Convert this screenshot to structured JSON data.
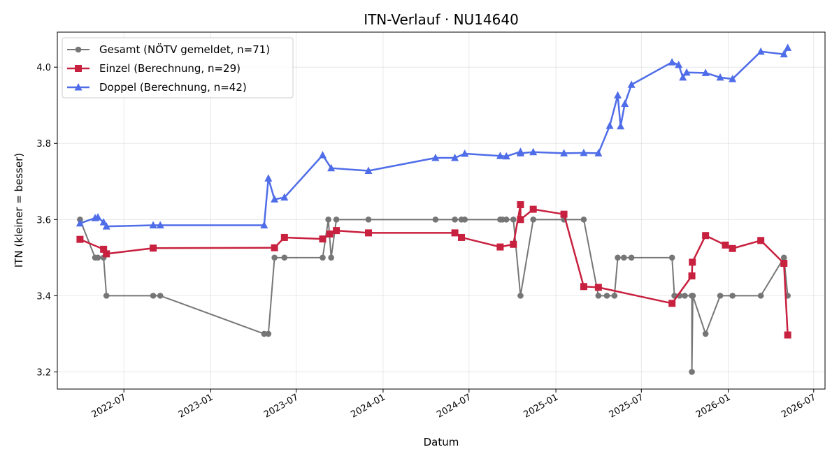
{
  "chart_data": {
    "type": "line",
    "title": "ITN-Verlauf · NU14640",
    "xlabel": "Datum",
    "ylabel": "ITN  (kleiner = besser)",
    "xlim": [
      "2022-02-10",
      "2026-07-25"
    ],
    "ylim": [
      3.155,
      4.092
    ],
    "x_ticks": [
      "2022-07",
      "2023-01",
      "2023-07",
      "2024-01",
      "2024-07",
      "2025-01",
      "2025-07",
      "2026-01",
      "2026-07"
    ],
    "y_ticks": [
      3.2,
      3.4,
      3.6,
      3.8,
      4.0
    ],
    "grid": true,
    "legend_position": "top-left",
    "series": [
      {
        "name": "Gesamt (NÖTV gemeldet, n=71)",
        "color": "#555555",
        "marker": "circle",
        "points": [
          [
            "2022-03-30",
            3.6
          ],
          [
            "2022-05-01",
            3.5
          ],
          [
            "2022-05-07",
            3.5
          ],
          [
            "2022-05-19",
            3.5
          ],
          [
            "2022-05-25",
            3.4
          ],
          [
            "2022-09-01",
            3.4
          ],
          [
            "2022-09-16",
            3.4
          ],
          [
            "2023-04-24",
            3.3
          ],
          [
            "2023-05-03",
            3.3
          ],
          [
            "2023-05-16",
            3.5
          ],
          [
            "2023-06-06",
            3.5
          ],
          [
            "2023-08-26",
            3.5
          ],
          [
            "2023-09-07",
            3.6
          ],
          [
            "2023-09-13",
            3.5
          ],
          [
            "2023-09-24",
            3.6
          ],
          [
            "2023-12-01",
            3.6
          ],
          [
            "2024-04-21",
            3.6
          ],
          [
            "2024-06-01",
            3.6
          ],
          [
            "2024-06-15",
            3.6
          ],
          [
            "2024-06-22",
            3.6
          ],
          [
            "2024-09-05",
            3.6
          ],
          [
            "2024-09-10",
            3.6
          ],
          [
            "2024-09-18",
            3.6
          ],
          [
            "2024-10-03",
            3.6
          ],
          [
            "2024-10-18",
            3.4
          ],
          [
            "2024-11-14",
            3.6
          ],
          [
            "2025-01-18",
            3.6
          ],
          [
            "2025-03-01",
            3.6
          ],
          [
            "2025-04-01",
            3.4
          ],
          [
            "2025-04-19",
            3.4
          ],
          [
            "2025-05-05",
            3.4
          ],
          [
            "2025-05-12",
            3.5
          ],
          [
            "2025-05-25",
            3.5
          ],
          [
            "2025-06-10",
            3.5
          ],
          [
            "2025-09-04",
            3.5
          ],
          [
            "2025-09-09",
            3.4
          ],
          [
            "2025-09-20",
            3.4
          ],
          [
            "2025-10-01",
            3.4
          ],
          [
            "2025-10-16",
            3.4
          ],
          [
            "2025-10-16",
            3.2
          ],
          [
            "2025-10-18",
            3.4
          ],
          [
            "2025-11-14",
            3.3
          ],
          [
            "2025-12-15",
            3.4
          ],
          [
            "2026-01-10",
            3.4
          ],
          [
            "2026-03-11",
            3.4
          ],
          [
            "2026-04-29",
            3.5
          ],
          [
            "2026-05-07",
            3.4
          ]
        ]
      },
      {
        "name": "Einzel (Berechnung, n=29)",
        "color": "#c8203f",
        "marker": "square",
        "points": [
          [
            "2022-03-30",
            3.548
          ],
          [
            "2022-05-19",
            3.522
          ],
          [
            "2022-05-25",
            3.51
          ],
          [
            "2022-09-01",
            3.525
          ],
          [
            "2023-05-16",
            3.526
          ],
          [
            "2023-06-06",
            3.553
          ],
          [
            "2023-08-26",
            3.549
          ],
          [
            "2023-09-10",
            3.562
          ],
          [
            "2023-09-24",
            3.571
          ],
          [
            "2023-12-01",
            3.565
          ],
          [
            "2024-06-01",
            3.565
          ],
          [
            "2024-06-15",
            3.553
          ],
          [
            "2024-09-05",
            3.528
          ],
          [
            "2024-10-03",
            3.535
          ],
          [
            "2024-10-18",
            3.639
          ],
          [
            "2024-10-18",
            3.6
          ],
          [
            "2024-11-14",
            3.627
          ],
          [
            "2025-01-18",
            3.614
          ],
          [
            "2025-03-01",
            3.424
          ],
          [
            "2025-04-01",
            3.422
          ],
          [
            "2025-09-04",
            3.38
          ],
          [
            "2025-10-16",
            3.452
          ],
          [
            "2025-10-17",
            3.488
          ],
          [
            "2025-11-14",
            3.558
          ],
          [
            "2025-12-26",
            3.533
          ],
          [
            "2026-01-10",
            3.524
          ],
          [
            "2026-03-11",
            3.545
          ],
          [
            "2026-04-29",
            3.485
          ],
          [
            "2026-05-07",
            3.297
          ]
        ]
      },
      {
        "name": "Doppel (Berechnung, n=42)",
        "color": "#4f6de8",
        "marker": "triangle",
        "points": [
          [
            "2022-03-30",
            3.59
          ],
          [
            "2022-05-01",
            3.604
          ],
          [
            "2022-05-07",
            3.606
          ],
          [
            "2022-05-19",
            3.593
          ],
          [
            "2022-05-25",
            3.582
          ],
          [
            "2022-09-01",
            3.585
          ],
          [
            "2022-09-16",
            3.585
          ],
          [
            "2023-04-24",
            3.585
          ],
          [
            "2023-05-03",
            3.708
          ],
          [
            "2023-05-16",
            3.653
          ],
          [
            "2023-06-06",
            3.658
          ],
          [
            "2023-08-26",
            3.769
          ],
          [
            "2023-09-13",
            3.735
          ],
          [
            "2023-12-01",
            3.728
          ],
          [
            "2024-04-21",
            3.762
          ],
          [
            "2024-06-01",
            3.762
          ],
          [
            "2024-06-22",
            3.773
          ],
          [
            "2024-09-05",
            3.767
          ],
          [
            "2024-09-18",
            3.766
          ],
          [
            "2024-10-18",
            3.778
          ],
          [
            "2024-10-18",
            3.774
          ],
          [
            "2024-11-14",
            3.777
          ],
          [
            "2025-01-18",
            3.774
          ],
          [
            "2025-03-01",
            3.775
          ],
          [
            "2025-04-01",
            3.774
          ],
          [
            "2025-04-25",
            3.846
          ],
          [
            "2025-05-12",
            3.926
          ],
          [
            "2025-05-18",
            3.845
          ],
          [
            "2025-05-27",
            3.904
          ],
          [
            "2025-06-10",
            3.954
          ],
          [
            "2025-09-04",
            4.013
          ],
          [
            "2025-09-18",
            4.006
          ],
          [
            "2025-09-27",
            3.973
          ],
          [
            "2025-10-05",
            3.986
          ],
          [
            "2025-11-14",
            3.985
          ],
          [
            "2025-12-15",
            3.973
          ],
          [
            "2026-01-10",
            3.969
          ],
          [
            "2026-03-11",
            4.041
          ],
          [
            "2026-04-29",
            4.034
          ],
          [
            "2026-05-07",
            4.051
          ]
        ]
      }
    ]
  }
}
